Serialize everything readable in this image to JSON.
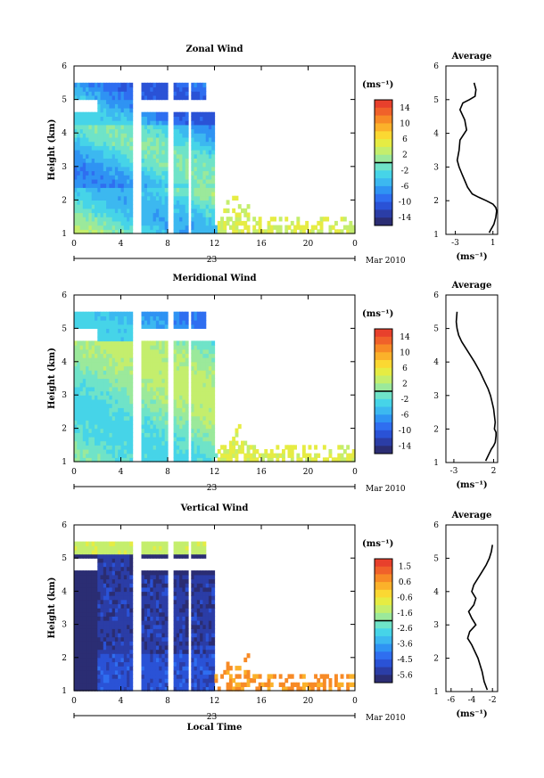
{
  "chart_data": [
    {
      "type": "heatmap",
      "title": "Zonal Wind",
      "ylabel": "Height (km)",
      "ylim": [
        1,
        6
      ],
      "xlim": [
        0,
        24
      ],
      "xticks": [
        "0",
        "4",
        "8",
        "12",
        "16",
        "20",
        "0"
      ],
      "yticks": [
        "1",
        "2",
        "3",
        "4",
        "5",
        "6"
      ],
      "date_label": "23",
      "month_label": "Mar 2010",
      "colorbar": {
        "unit": "(ms⁻¹)",
        "ticks": [
          "14",
          "10",
          "6",
          "2",
          "-2",
          "-6",
          "-10",
          "-14"
        ],
        "min": -16,
        "max": 16
      },
      "average": {
        "title": "Average",
        "xlabel": "(ms⁻¹)",
        "xticks": [
          "-3",
          "1"
        ],
        "yticks": [
          "1",
          "2",
          "3",
          "4",
          "5",
          "6"
        ],
        "x": [
          -1.0,
          -0.8,
          -0.9,
          -1.5,
          -2.2,
          -2.5,
          -2.0,
          -1.8,
          -2.5,
          -2.6,
          -2.8,
          -2.6,
          -2.3,
          -2.0,
          -1.7,
          -1.2,
          -0.5,
          0.3,
          1.0,
          1.3,
          1.4,
          1.3,
          1.1,
          0.8,
          0.6
        ],
        "y": [
          5.5,
          5.3,
          5.1,
          5.0,
          4.9,
          4.7,
          4.4,
          4.1,
          3.8,
          3.5,
          3.2,
          3.0,
          2.8,
          2.6,
          2.4,
          2.2,
          2.1,
          2.0,
          1.9,
          1.8,
          1.7,
          1.5,
          1.3,
          1.15,
          1.05
        ]
      }
    },
    {
      "type": "heatmap",
      "title": "Meridional Wind",
      "ylabel": "Height (km)",
      "ylim": [
        1,
        6
      ],
      "xlim": [
        0,
        24
      ],
      "xticks": [
        "0",
        "4",
        "8",
        "12",
        "16",
        "20",
        "0"
      ],
      "yticks": [
        "1",
        "2",
        "3",
        "4",
        "5",
        "6"
      ],
      "date_label": "23",
      "month_label": "Mar 2010",
      "colorbar": {
        "unit": "(ms⁻¹)",
        "ticks": [
          "14",
          "10",
          "6",
          "2",
          "-2",
          "-6",
          "-10",
          "-14"
        ],
        "min": -16,
        "max": 16
      },
      "average": {
        "title": "Average",
        "xlabel": "(ms⁻¹)",
        "xticks": [
          "-3",
          "2"
        ],
        "yticks": [
          "1",
          "2",
          "3",
          "4",
          "5",
          "6"
        ],
        "x": [
          -2.6,
          -2.7,
          -2.6,
          -2.4,
          -2.0,
          -1.2,
          -0.4,
          0.3,
          0.9,
          1.3,
          1.6,
          1.8,
          2.0,
          2.1,
          2.2,
          2.1,
          2.3,
          2.3,
          2.2,
          2.0,
          1.7,
          1.3,
          1.0
        ],
        "y": [
          5.5,
          5.2,
          5.0,
          4.8,
          4.6,
          4.3,
          4.0,
          3.7,
          3.4,
          3.2,
          3.0,
          2.8,
          2.6,
          2.4,
          2.2,
          2.0,
          1.9,
          1.8,
          1.6,
          1.5,
          1.4,
          1.2,
          1.05
        ]
      }
    },
    {
      "type": "heatmap",
      "title": "Vertical Wind",
      "ylabel": "Height (km)",
      "xlabel": "Local Time",
      "ylim": [
        1,
        6
      ],
      "xlim": [
        0,
        24
      ],
      "xticks": [
        "0",
        "4",
        "8",
        "12",
        "16",
        "20",
        "0"
      ],
      "yticks": [
        "1",
        "2",
        "3",
        "4",
        "5",
        "6"
      ],
      "date_label": "23",
      "month_label": "Mar 2010",
      "colorbar": {
        "unit": "(ms⁻¹)",
        "ticks": [
          "1.5",
          "0.6",
          "-0.6",
          "-1.6",
          "-2.6",
          "-3.6",
          "-4.5",
          "-5.6"
        ],
        "min": -6.0,
        "max": 2.0
      },
      "average": {
        "title": "Average",
        "xlabel": "(ms⁻¹)",
        "xticks": [
          "-6",
          "-4",
          "-2"
        ],
        "yticks": [
          "1",
          "2",
          "3",
          "4",
          "5",
          "6"
        ],
        "x": [
          -2.0,
          -2.1,
          -2.3,
          -2.6,
          -3.0,
          -3.4,
          -3.8,
          -4.0,
          -3.6,
          -3.8,
          -4.3,
          -4.0,
          -3.6,
          -4.2,
          -4.4,
          -4.0,
          -3.7,
          -3.4,
          -3.2,
          -3.0,
          -2.8,
          -2.5
        ],
        "y": [
          5.4,
          5.2,
          5.0,
          4.8,
          4.6,
          4.4,
          4.2,
          4.0,
          3.8,
          3.6,
          3.4,
          3.2,
          3.0,
          2.8,
          2.6,
          2.4,
          2.2,
          2.0,
          1.8,
          1.6,
          1.3,
          1.05
        ]
      }
    }
  ]
}
